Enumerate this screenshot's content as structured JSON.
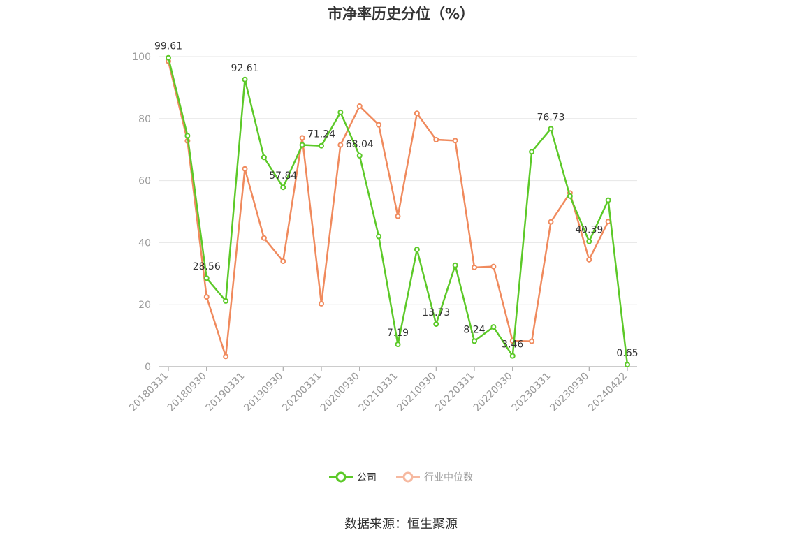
{
  "chart_data": {
    "type": "line",
    "title": "市净率历史分位（%）",
    "xlabel": "",
    "ylabel": "",
    "ylim": [
      0,
      100
    ],
    "y_ticks": [
      0,
      20,
      40,
      60,
      80,
      100
    ],
    "x": [
      "20180331",
      "20180630",
      "20180930",
      "20181231",
      "20190331",
      "20190630",
      "20190930",
      "20191231",
      "20200331",
      "20200630",
      "20200930",
      "20201231",
      "20210331",
      "20210630",
      "20210930",
      "20211231",
      "20220331",
      "20220630",
      "20220930",
      "20221231",
      "20230331",
      "20230630",
      "20230930",
      "20231231",
      "20240422"
    ],
    "x_tick_labels": [
      "20180331",
      "20180930",
      "20190331",
      "20190930",
      "20200331",
      "20200930",
      "20210331",
      "20210930",
      "20220331",
      "20220930",
      "20230331",
      "20230930",
      "20240422"
    ],
    "series": [
      {
        "name": "公司",
        "color": "#5cc928",
        "values": [
          99.61,
          74.5,
          28.56,
          21.2,
          92.61,
          67.5,
          57.84,
          71.5,
          71.24,
          82.0,
          68.04,
          42.0,
          7.19,
          37.8,
          13.73,
          32.7,
          8.24,
          12.8,
          3.46,
          69.3,
          76.73,
          55.0,
          40.39,
          53.7,
          0.65
        ]
      },
      {
        "name": "行业中位数",
        "color": "#f08a5d",
        "values": [
          98.5,
          72.8,
          22.5,
          3.3,
          63.8,
          41.5,
          34.0,
          73.8,
          20.3,
          71.5,
          84.0,
          78.0,
          48.5,
          81.7,
          73.2,
          72.9,
          32.0,
          32.3,
          8.3,
          8.2,
          46.7,
          56.0,
          34.5,
          46.8,
          null
        ]
      }
    ],
    "data_labels": [
      {
        "series": 0,
        "index": 0,
        "text": "99.61"
      },
      {
        "series": 0,
        "index": 2,
        "text": "28.56"
      },
      {
        "series": 0,
        "index": 4,
        "text": "92.61"
      },
      {
        "series": 0,
        "index": 6,
        "text": "57.84"
      },
      {
        "series": 0,
        "index": 8,
        "text": "71.24"
      },
      {
        "series": 0,
        "index": 10,
        "text": "68.04"
      },
      {
        "series": 0,
        "index": 12,
        "text": "7.19"
      },
      {
        "series": 0,
        "index": 14,
        "text": "13.73"
      },
      {
        "series": 0,
        "index": 16,
        "text": "8.24"
      },
      {
        "series": 0,
        "index": 18,
        "text": "3.46"
      },
      {
        "series": 0,
        "index": 20,
        "text": "76.73"
      },
      {
        "series": 0,
        "index": 22,
        "text": "40.39"
      },
      {
        "series": 0,
        "index": 24,
        "text": "0.65"
      }
    ],
    "legend": [
      {
        "name": "公司",
        "color": "#5cc928",
        "active": true
      },
      {
        "name": "行业中位数",
        "color": "#f6b9a0",
        "active": false
      }
    ],
    "legend_position": "bottom",
    "grid": true
  },
  "footer": {
    "source": "数据来源：恒生聚源"
  }
}
